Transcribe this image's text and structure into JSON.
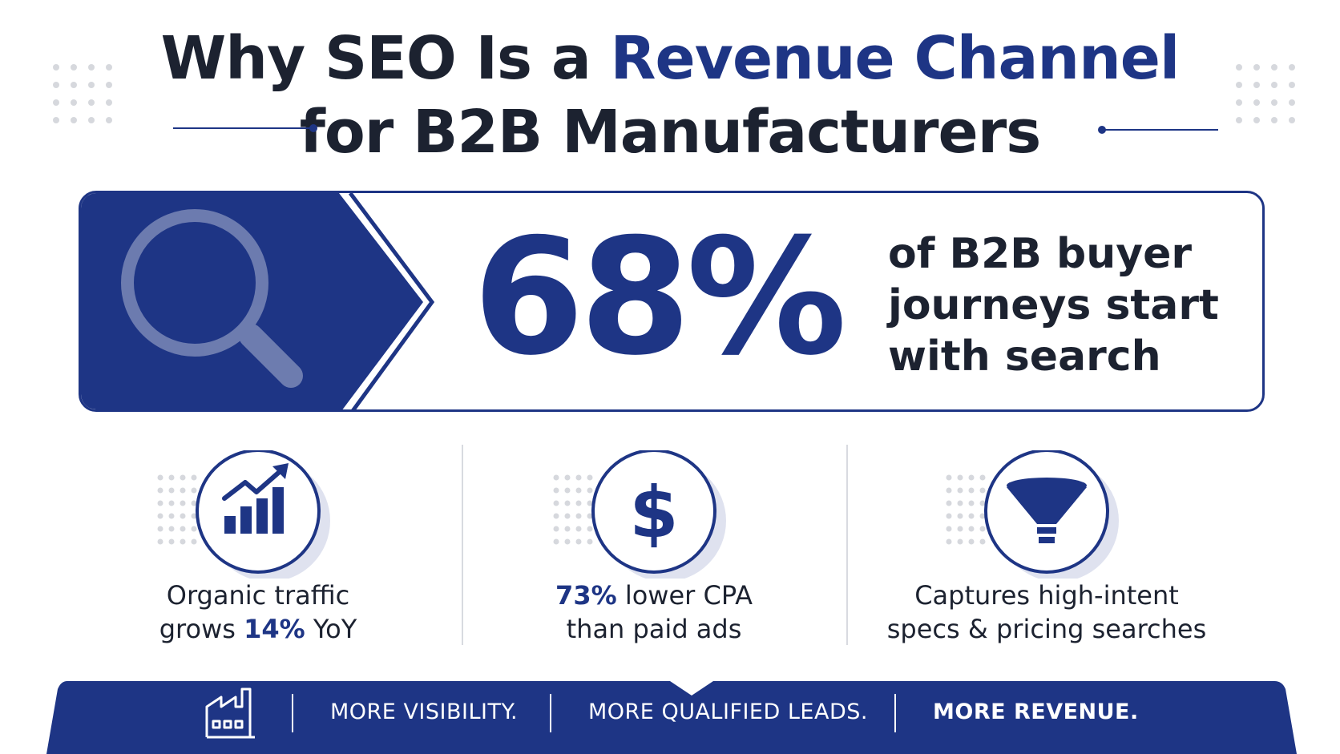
{
  "title": {
    "line1_prefix": "Why SEO Is a ",
    "line1_accent": "Revenue Channel",
    "line2": "for B2B Manufacturers"
  },
  "hero": {
    "icon": "magnifying-glass-icon",
    "stat": "68%",
    "text_line1": "of B2B buyer",
    "text_line2": "journeys start",
    "text_line3": "with search"
  },
  "stats": [
    {
      "icon": "growth-chart-icon",
      "line1": "Organic traffic",
      "line2_pre": "grows ",
      "line2_highlight": "14%",
      "line2_post": " YoY"
    },
    {
      "icon": "dollar-icon",
      "line1_highlight": "73%",
      "line1_post": " lower CPA",
      "line2": "than paid ads"
    },
    {
      "icon": "funnel-icon",
      "line1": "Captures high-intent",
      "line2": "specs & pricing searches"
    }
  ],
  "banner": {
    "icon": "factory-icon",
    "items": [
      "MORE VISIBILITY.",
      "MORE QUALIFIED LEADS.",
      "MORE REVENUE."
    ]
  },
  "colors": {
    "brand_navy": "#1e3585",
    "text_dark": "#1c2230",
    "dot_gray": "#d6d8dd",
    "icon_shadow": "#dfe2ef"
  }
}
